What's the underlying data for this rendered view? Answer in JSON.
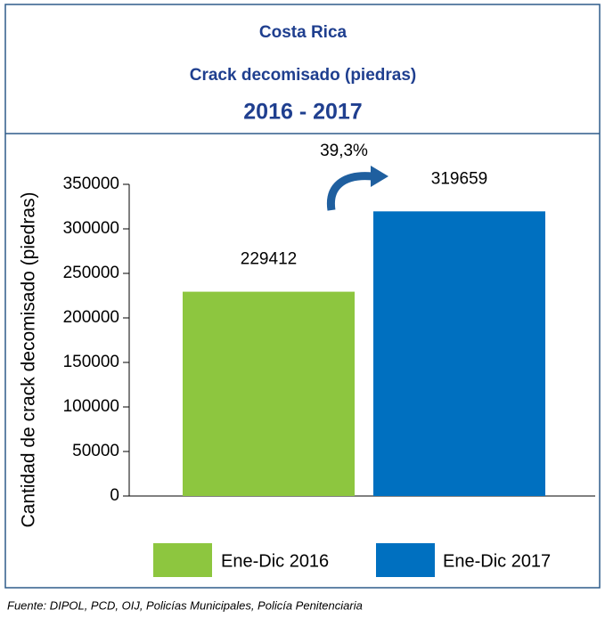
{
  "chart_data": {
    "type": "bar",
    "title": "Costa Rica",
    "subtitle": "Crack decomisado (piedras)",
    "period": "2016 - 2017",
    "y_label": "Cantidad de crack decomisado (piedras)",
    "annotation": "39,3%",
    "series": [
      {
        "name": "Ene-Dic 2016",
        "color": "#8dc63f",
        "values": [
          229412
        ]
      },
      {
        "name": "Ene-Dic 2017",
        "color": "#0070c0",
        "values": [
          319659
        ]
      }
    ],
    "ylim": [
      0,
      350000
    ],
    "yticks": [
      0,
      50000,
      100000,
      150000,
      200000,
      250000,
      300000,
      350000
    ],
    "source": "Fuente: DIPOL, PCD, OIJ, Policías Municipales, Policía Penitenciaria"
  }
}
